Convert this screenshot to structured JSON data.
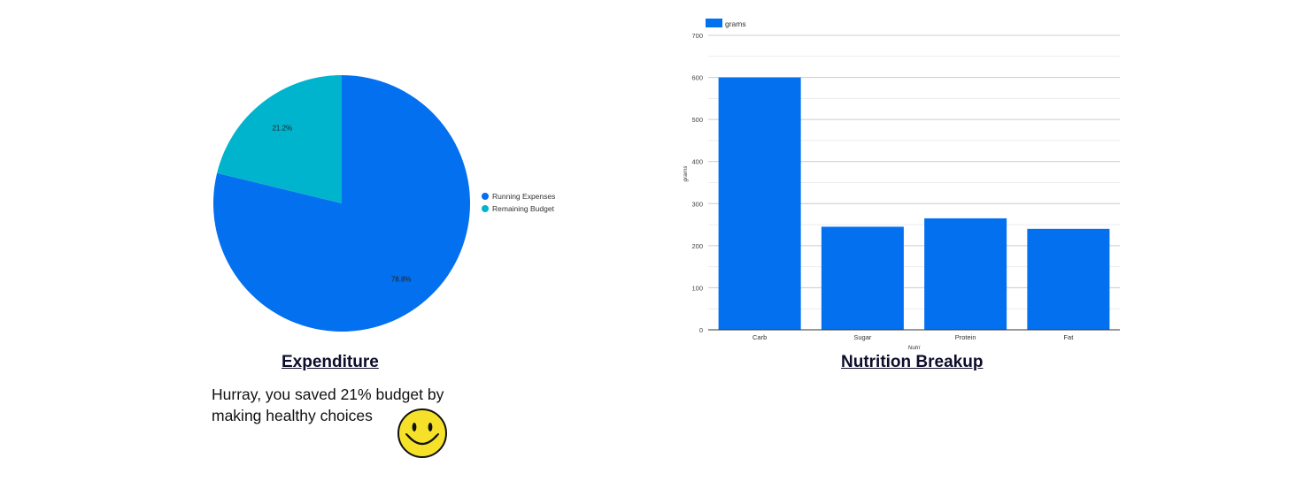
{
  "chart_data": [
    {
      "type": "pie",
      "title": "Expenditure",
      "slices": [
        {
          "label": "Running Expenses",
          "value": 78.8,
          "display": "78.8%",
          "color": "#0370ef"
        },
        {
          "label": "Remaining Budget",
          "value": 21.2,
          "display": "21.2%",
          "color": "#00b4cd"
        }
      ],
      "legend_position": "right"
    },
    {
      "type": "bar",
      "title": "Nutrition Breakup",
      "categories": [
        "Carb",
        "Sugar",
        "Protein",
        "Fat"
      ],
      "series": [
        {
          "name": "grams",
          "values": [
            600,
            245,
            265,
            240
          ],
          "color": "#0370ef"
        }
      ],
      "xlabel": "Nutri",
      "ylabel": "grams",
      "ylim": [
        0,
        700
      ],
      "yticks": [
        0,
        100,
        200,
        300,
        400,
        500,
        600,
        700
      ],
      "grid": true,
      "legend_position": "top-left"
    }
  ],
  "message": "Hurray, you saved 21% budget by making healthy choices",
  "icons": {
    "smiley": "smiley-face-icon"
  }
}
